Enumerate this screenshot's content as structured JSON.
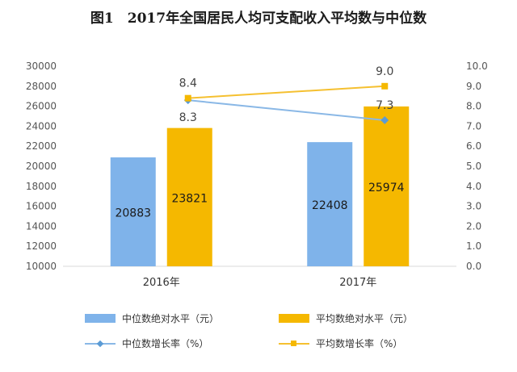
{
  "title": "图1　2017年全国居民人均可支配收入平均数与中位数",
  "colors": {
    "median_bar": "#7fb3ea",
    "mean_bar": "#f5b800",
    "median_line": "#8ab8e6",
    "mean_line": "#f5c030",
    "axis_text": "#555555",
    "grid": "#d9d9d9"
  },
  "chart_data": {
    "type": "bar+line",
    "title": "图1　2017年全国居民人均可支配收入平均数与中位数",
    "categories": [
      "2016年",
      "2017年"
    ],
    "left_axis": {
      "range": [
        10000,
        30000
      ],
      "ticks": [
        "10000",
        "12000",
        "14000",
        "16000",
        "18000",
        "20000",
        "22000",
        "24000",
        "26000",
        "28000",
        "30000"
      ]
    },
    "right_axis": {
      "range": [
        0,
        10
      ],
      "ticks": [
        "0.0",
        "1.0",
        "2.0",
        "3.0",
        "4.0",
        "5.0",
        "6.0",
        "7.0",
        "8.0",
        "9.0",
        "10.0"
      ]
    },
    "bar_series": [
      {
        "name": "中位数绝对水平（元）",
        "values": [
          20883,
          22408
        ],
        "labels": [
          "20883",
          "22408"
        ]
      },
      {
        "name": "平均数绝对水平（元）",
        "values": [
          23821,
          25974
        ],
        "labels": [
          "23821",
          "25974"
        ]
      }
    ],
    "line_series": [
      {
        "name": "中位数增长率（%）",
        "values": [
          8.3,
          7.3
        ],
        "labels": [
          "8.3",
          "7.3"
        ]
      },
      {
        "name": "平均数增长率（%）",
        "values": [
          8.4,
          9.0
        ],
        "labels": [
          "8.4",
          "9.0"
        ]
      }
    ],
    "legend_placement": "bottom",
    "grid": false
  }
}
